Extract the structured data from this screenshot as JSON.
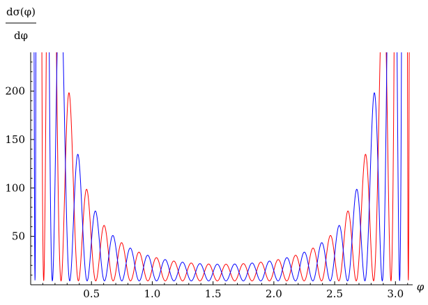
{
  "chart_data": {
    "type": "line",
    "xlabel": "φ",
    "ylabel_numerator": "dσ(φ)",
    "ylabel_denominator": "dφ",
    "xlim": [
      0,
      3.1416
    ],
    "ylim": [
      0,
      240
    ],
    "x_ticks": [
      0.5,
      1.0,
      1.5,
      2.0,
      2.5,
      3.0
    ],
    "x_tick_labels": [
      "0.5",
      "1.0",
      "1.5",
      "2.0",
      "2.5",
      "3.0"
    ],
    "y_ticks": [
      50,
      100,
      150,
      200
    ],
    "y_tick_labels": [
      "50",
      "100",
      "150",
      "200"
    ],
    "grid": false,
    "legend": "none",
    "series": [
      {
        "color": "#ff0000",
        "envelope_min": 5,
        "envelope_max_scale": 16,
        "oscillation_freq": 44,
        "phase": 0.0
      },
      {
        "color": "#0000ff",
        "envelope_min": 5,
        "envelope_max_scale": 16,
        "oscillation_freq": 44,
        "phase": 3.14159
      }
    ]
  }
}
